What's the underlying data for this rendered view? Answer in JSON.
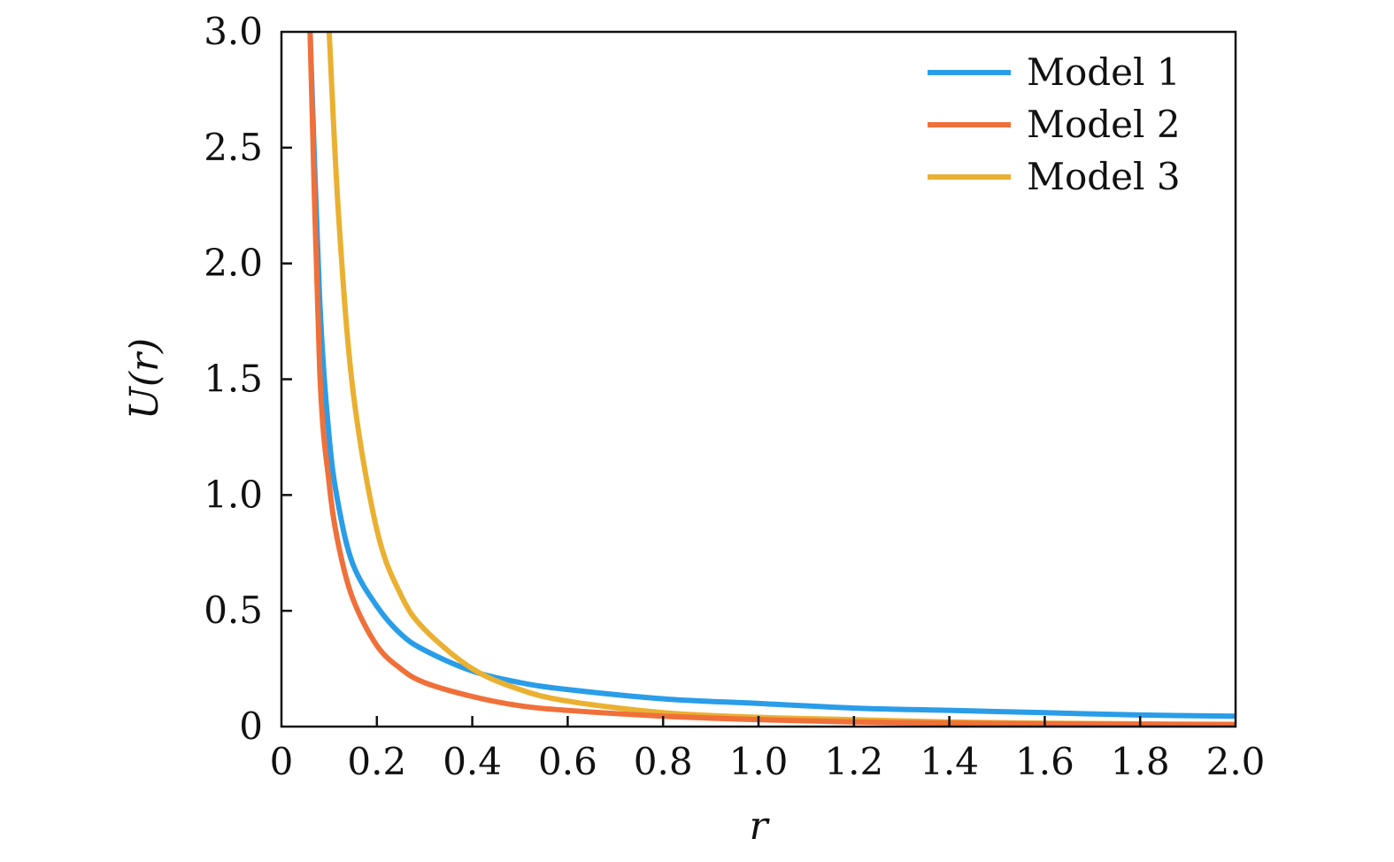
{
  "chart_data": {
    "type": "line",
    "title": "",
    "xlabel": "r",
    "ylabel": "U(r)",
    "xlim": [
      0,
      2.0
    ],
    "ylim": [
      0,
      3.0
    ],
    "x_ticks": [
      "0",
      "0.2",
      "0.4",
      "0.6",
      "0.8",
      "1.0",
      "1.2",
      "1.4",
      "1.6",
      "1.8",
      "2.0"
    ],
    "y_ticks": [
      "0",
      "0.5",
      "1.0",
      "1.5",
      "2.0",
      "2.5",
      "3.0"
    ],
    "grid": false,
    "legend_position": "top-right",
    "x": [
      0.06,
      0.08,
      0.1,
      0.12,
      0.15,
      0.2,
      0.25,
      0.3,
      0.4,
      0.5,
      0.6,
      0.8,
      1.0,
      1.2,
      1.4,
      1.6,
      1.8,
      2.0
    ],
    "series": [
      {
        "name": "Model 1",
        "color": "#2A9DE8",
        "values": [
          3.0,
          1.85,
          1.25,
          0.95,
          0.7,
          0.52,
          0.4,
          0.33,
          0.24,
          0.19,
          0.16,
          0.12,
          0.1,
          0.08,
          0.07,
          0.06,
          0.05,
          0.045
        ]
      },
      {
        "name": "Model 2",
        "color": "#F0703A",
        "values": [
          3.0,
          1.55,
          1.05,
          0.78,
          0.55,
          0.35,
          0.25,
          0.19,
          0.13,
          0.09,
          0.07,
          0.045,
          0.03,
          0.02,
          0.015,
          0.012,
          0.01,
          0.008
        ]
      },
      {
        "name": "Model 3",
        "color": "#EAB031",
        "values": [
          null,
          null,
          3.0,
          2.2,
          1.45,
          0.85,
          0.57,
          0.42,
          0.25,
          0.16,
          0.11,
          0.06,
          0.04,
          0.03,
          0.02,
          0.015,
          0.012,
          0.01
        ]
      }
    ]
  }
}
